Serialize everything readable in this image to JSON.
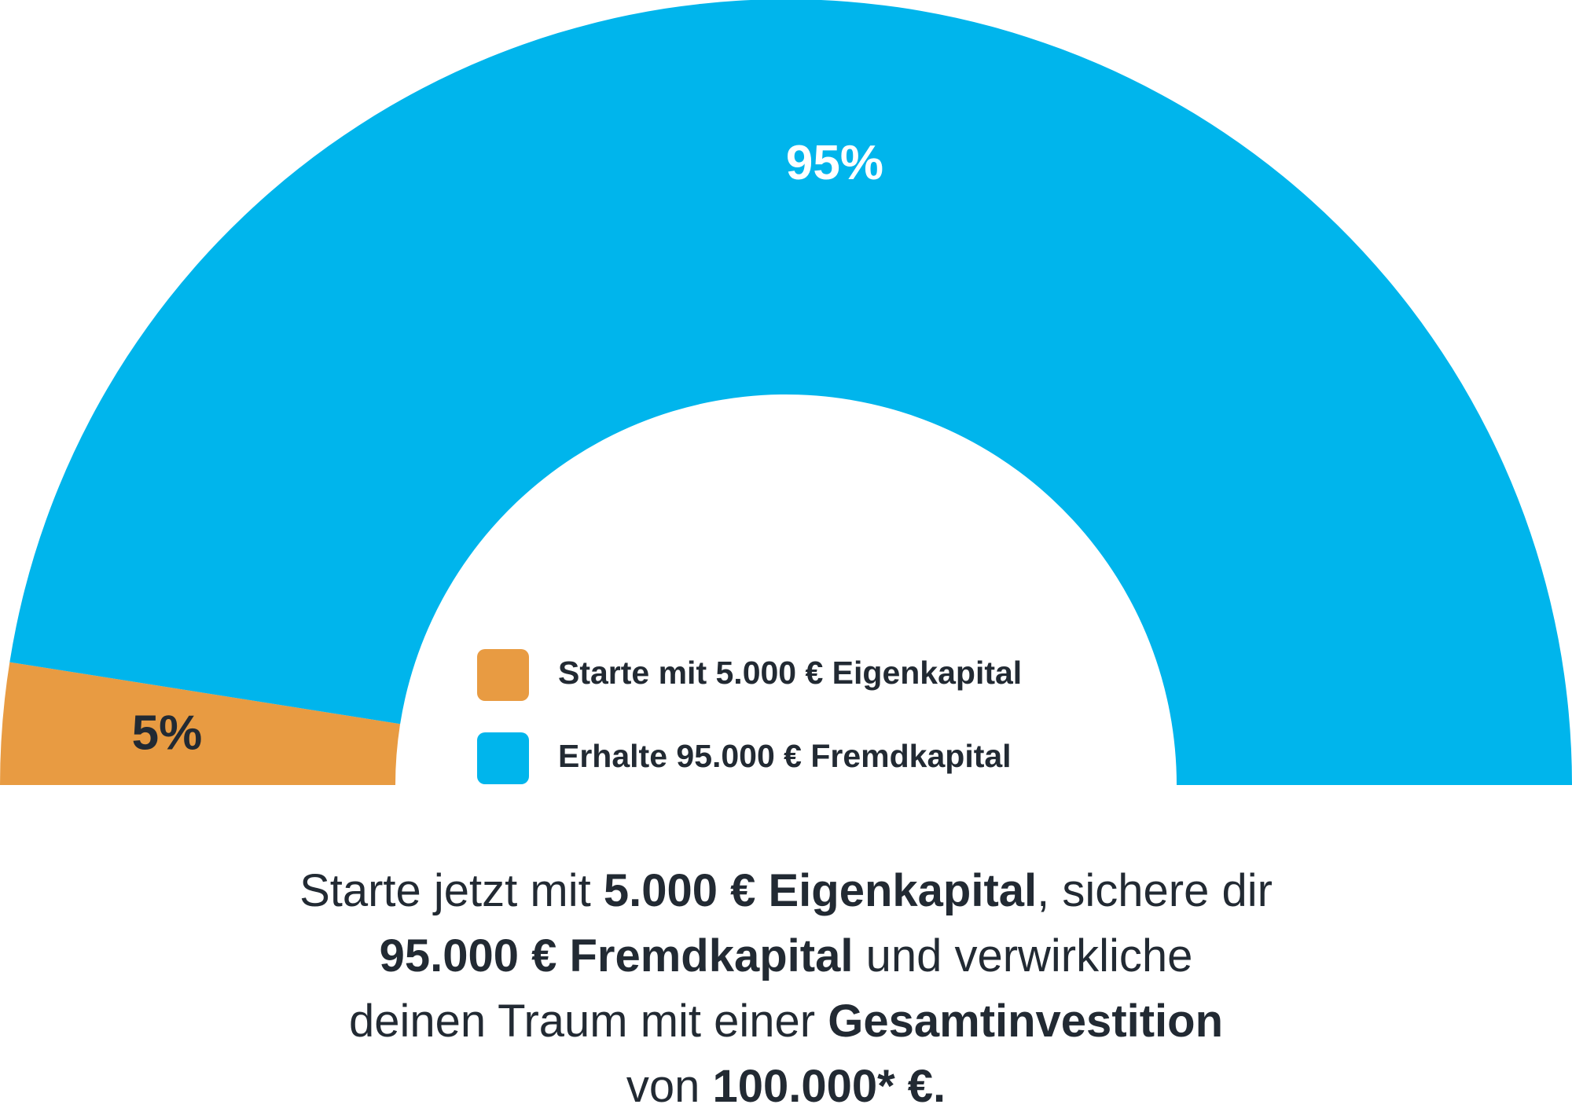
{
  "chart_data": {
    "type": "half-donut",
    "categories": [
      "Starte mit 5.000 € Eigenkapital",
      "Erhalte 95.000 € Fremdkapital"
    ],
    "values": [
      5,
      95
    ],
    "value_labels": [
      "5%",
      "95%"
    ],
    "colors": [
      "#e89b42",
      "#00b5ec"
    ],
    "caption": [
      [
        {
          "text": "Starte jetzt mit ",
          "bold": false
        },
        {
          "text": "5.000 € Eigenkapital",
          "bold": true
        },
        {
          "text": ", sichere dir",
          "bold": false
        }
      ],
      [
        {
          "text": "95.000 € Fremdkapital",
          "bold": true
        },
        {
          "text": " und verwirkliche",
          "bold": false
        }
      ],
      [
        {
          "text": "deinen Traum mit einer ",
          "bold": false
        },
        {
          "text": "Gesamtinvestition",
          "bold": true
        }
      ],
      [
        {
          "text": "von ",
          "bold": false
        },
        {
          "text": "100.000* €.",
          "bold": true
        }
      ]
    ]
  }
}
